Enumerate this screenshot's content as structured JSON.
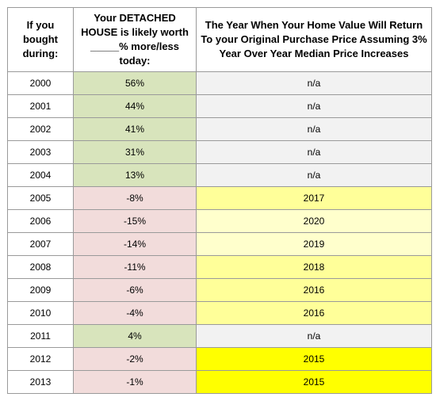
{
  "header": {
    "col1": "If you bought during:",
    "col2": "Your DETACHED HOUSE is likely worth _____% more/less today:",
    "col3": "The Year When Your Home Value Will Return To your Original Purchase Price Assuming 3% Year Over Year Median Price Increases"
  },
  "rows": [
    {
      "year": "2000",
      "change": "56%",
      "return_year": "n/a"
    },
    {
      "year": "2001",
      "change": "44%",
      "return_year": "n/a"
    },
    {
      "year": "2002",
      "change": "41%",
      "return_year": "n/a"
    },
    {
      "year": "2003",
      "change": "31%",
      "return_year": "n/a"
    },
    {
      "year": "2004",
      "change": "13%",
      "return_year": "n/a"
    },
    {
      "year": "2005",
      "change": "-8%",
      "return_year": "2017"
    },
    {
      "year": "2006",
      "change": "-15%",
      "return_year": "2020"
    },
    {
      "year": "2007",
      "change": "-14%",
      "return_year": "2019"
    },
    {
      "year": "2008",
      "change": "-11%",
      "return_year": "2018"
    },
    {
      "year": "2009",
      "change": "-6%",
      "return_year": "2016"
    },
    {
      "year": "2010",
      "change": "-4%",
      "return_year": "2016"
    },
    {
      "year": "2011",
      "change": "4%",
      "return_year": "n/a"
    },
    {
      "year": "2012",
      "change": "-2%",
      "return_year": "2015"
    },
    {
      "year": "2013",
      "change": "-1%",
      "return_year": "2015"
    }
  ],
  "colors": {
    "positive": "#d8e4bc",
    "negative": "#f2dcdb",
    "na": "#f2f2f2",
    "return_light": "#ffff99",
    "return_pale": "#ffffcc",
    "return_bright": "#ffff00"
  }
}
